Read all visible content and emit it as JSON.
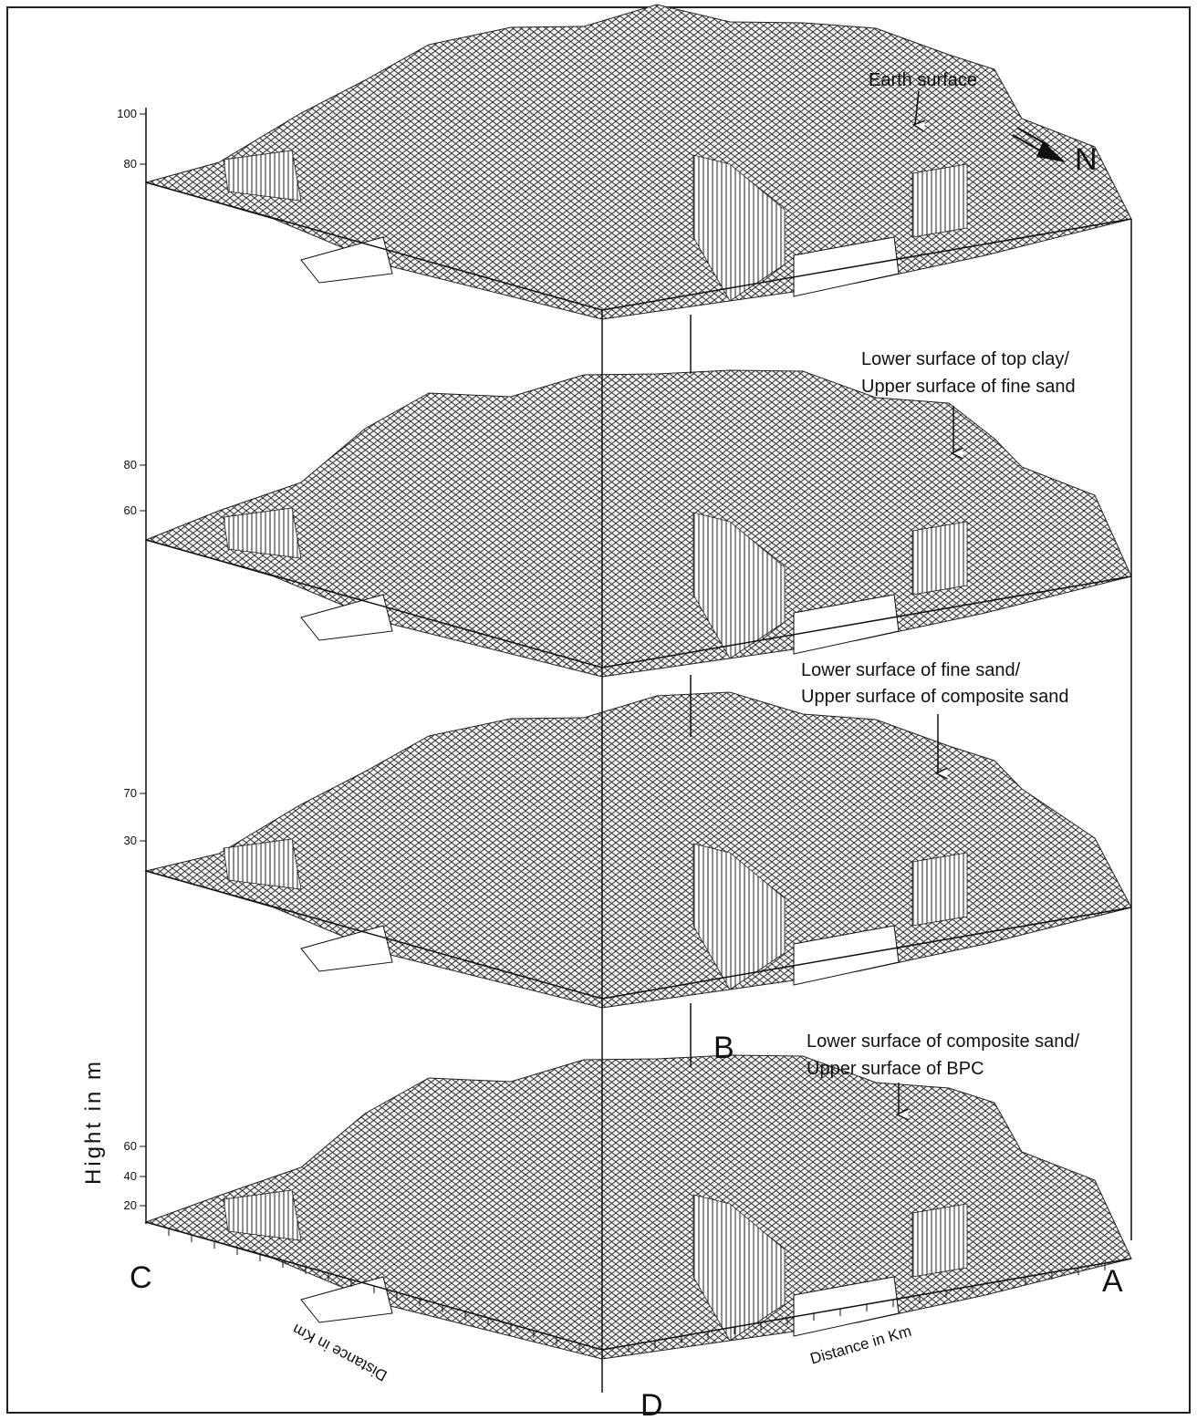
{
  "layers": [
    {
      "label": [
        "Earth surface"
      ],
      "ticks": [
        "100",
        "80"
      ]
    },
    {
      "label": [
        "Lower surface of top clay/",
        "Upper surface of fine sand"
      ],
      "ticks": [
        "80",
        "60"
      ]
    },
    {
      "label": [
        "Lower surface of fine sand/",
        "Upper surface of composite sand"
      ],
      "ticks": [
        "70",
        "30"
      ]
    },
    {
      "label": [
        "Lower surface of composite sand/",
        "Upper surface of BPC"
      ],
      "ticks": [
        "60",
        "40",
        "20"
      ]
    }
  ],
  "north": "N",
  "corners": {
    "a": "A",
    "b": "B",
    "c": "C",
    "d": "D"
  },
  "axes": {
    "vertical": "Hight in m",
    "left_depth": "Distance in Km",
    "right_depth": "Distance in Km"
  }
}
